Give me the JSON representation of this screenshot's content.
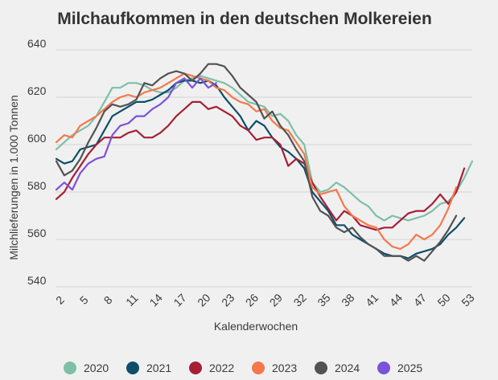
{
  "chart_data": {
    "type": "line",
    "title": "Milchaufkommen in den deutschen Molkereien",
    "xlabel": "Kalenderwochen",
    "ylabel": "Milchlieferungen in 1.000 Tonnen",
    "xlim": [
      1,
      53
    ],
    "ylim": [
      540,
      640
    ],
    "yticks": [
      540,
      560,
      580,
      600,
      620,
      640
    ],
    "xticks": [
      2,
      5,
      8,
      11,
      14,
      17,
      20,
      23,
      26,
      29,
      32,
      35,
      38,
      41,
      44,
      47,
      50,
      53
    ],
    "grid": true,
    "legend_position": "bottom",
    "series": [
      {
        "name": "2020",
        "color": "#7dbfa7",
        "x": [
          1,
          2,
          3,
          4,
          5,
          6,
          7,
          8,
          9,
          10,
          11,
          12,
          13,
          14,
          15,
          16,
          17,
          18,
          19,
          20,
          21,
          22,
          23,
          24,
          25,
          26,
          27,
          28,
          29,
          30,
          31,
          32,
          33,
          34,
          35,
          36,
          37,
          38,
          39,
          40,
          41,
          42,
          43,
          44,
          45,
          46,
          47,
          48,
          49,
          50,
          51,
          52,
          53
        ],
        "values": [
          598,
          601,
          604,
          606,
          608,
          612,
          618,
          624,
          624,
          626,
          626,
          625,
          623,
          622,
          622,
          624,
          627,
          628,
          629,
          628,
          627,
          626,
          624,
          621,
          618,
          617,
          616,
          612,
          613,
          610,
          604,
          600,
          584,
          580,
          581,
          584,
          582,
          579,
          576,
          574,
          570,
          568,
          570,
          569,
          568,
          569,
          570,
          572,
          575,
          576,
          580,
          586,
          593
        ]
      },
      {
        "name": "2021",
        "color": "#0f4d68",
        "x": [
          1,
          2,
          3,
          4,
          5,
          6,
          7,
          8,
          9,
          10,
          11,
          12,
          13,
          14,
          15,
          16,
          17,
          18,
          19,
          20,
          21,
          22,
          23,
          24,
          25,
          26,
          27,
          28,
          29,
          30,
          31,
          32,
          33,
          34,
          35,
          36,
          37,
          38,
          39,
          40,
          41,
          42,
          43,
          44,
          45,
          46,
          47,
          48,
          49,
          50,
          51,
          52
        ],
        "values": [
          594,
          592,
          593,
          598,
          599,
          600,
          606,
          612,
          614,
          616,
          618,
          618,
          619,
          621,
          623,
          626,
          627,
          627,
          626,
          627,
          625,
          620,
          616,
          612,
          606,
          610,
          608,
          603,
          599,
          597,
          594,
          590,
          580,
          576,
          572,
          566,
          566,
          562,
          560,
          558,
          556,
          554,
          553,
          553,
          552,
          554,
          555,
          556,
          558,
          562,
          565,
          569
        ]
      },
      {
        "name": "2022",
        "color": "#a51f35",
        "x": [
          1,
          2,
          3,
          4,
          5,
          6,
          7,
          8,
          9,
          10,
          11,
          12,
          13,
          14,
          15,
          16,
          17,
          18,
          19,
          20,
          21,
          22,
          23,
          24,
          25,
          26,
          27,
          28,
          29,
          30,
          31,
          32,
          33,
          34,
          35,
          36,
          37,
          38,
          39,
          40,
          41,
          42,
          43,
          44,
          45,
          46,
          47,
          48,
          49,
          50,
          51,
          52
        ],
        "values": [
          577,
          580,
          586,
          591,
          596,
          600,
          603,
          603,
          603,
          605,
          606,
          603,
          603,
          605,
          608,
          612,
          615,
          618,
          618,
          615,
          616,
          614,
          612,
          608,
          606,
          602,
          603,
          603,
          600,
          591,
          594,
          592,
          584,
          578,
          573,
          568,
          572,
          570,
          566,
          565,
          564,
          565,
          565,
          568,
          571,
          572,
          572,
          575,
          579,
          575,
          580,
          590
        ]
      },
      {
        "name": "2023",
        "color": "#f4784a",
        "x": [
          1,
          2,
          3,
          4,
          5,
          6,
          7,
          8,
          9,
          10,
          11,
          12,
          13,
          14,
          15,
          16,
          17,
          18,
          19,
          20,
          21,
          22,
          23,
          24,
          25,
          26,
          27,
          28,
          29,
          30,
          31,
          32,
          33,
          34,
          35,
          36,
          37,
          38,
          39,
          40,
          41,
          42,
          43,
          44,
          45,
          46,
          47,
          48,
          49,
          50,
          51
        ],
        "values": [
          601,
          604,
          603,
          608,
          610,
          612,
          615,
          618,
          620,
          621,
          620,
          622,
          623,
          624,
          626,
          628,
          630,
          629,
          628,
          627,
          624,
          623,
          620,
          618,
          617,
          614,
          615,
          610,
          607,
          606,
          601,
          596,
          582,
          579,
          580,
          581,
          574,
          570,
          568,
          566,
          565,
          560,
          557,
          556,
          558,
          562,
          560,
          562,
          566,
          573,
          582
        ]
      },
      {
        "name": "2024",
        "color": "#525252",
        "x": [
          1,
          2,
          3,
          4,
          5,
          6,
          7,
          8,
          9,
          10,
          11,
          12,
          13,
          14,
          15,
          16,
          17,
          18,
          19,
          20,
          21,
          22,
          23,
          24,
          25,
          26,
          27,
          28,
          29,
          30,
          31,
          32,
          33,
          34,
          35,
          36,
          37,
          38,
          39,
          40,
          41,
          42,
          43,
          44,
          45,
          46,
          47,
          48,
          49,
          50,
          51
        ],
        "values": [
          593,
          587,
          589,
          594,
          601,
          607,
          614,
          617,
          616,
          617,
          619,
          626,
          625,
          628,
          630,
          631,
          630,
          627,
          630,
          634,
          634,
          633,
          629,
          624,
          621,
          618,
          611,
          614,
          608,
          604,
          598,
          593,
          578,
          572,
          570,
          565,
          563,
          565,
          561,
          558,
          556,
          553,
          553,
          553,
          551,
          553,
          551,
          555,
          559,
          564,
          570
        ]
      },
      {
        "name": "2025",
        "color": "#7c52d8",
        "x": [
          1,
          2,
          3,
          4,
          5,
          6,
          7,
          8,
          9,
          10,
          11,
          12,
          13,
          14,
          15,
          16,
          17,
          18,
          19,
          20,
          21
        ],
        "values": [
          581,
          584,
          581,
          588,
          592,
          594,
          595,
          604,
          608,
          609,
          612,
          612,
          615,
          617,
          620,
          626,
          628,
          624,
          628,
          624,
          626
        ]
      }
    ]
  }
}
